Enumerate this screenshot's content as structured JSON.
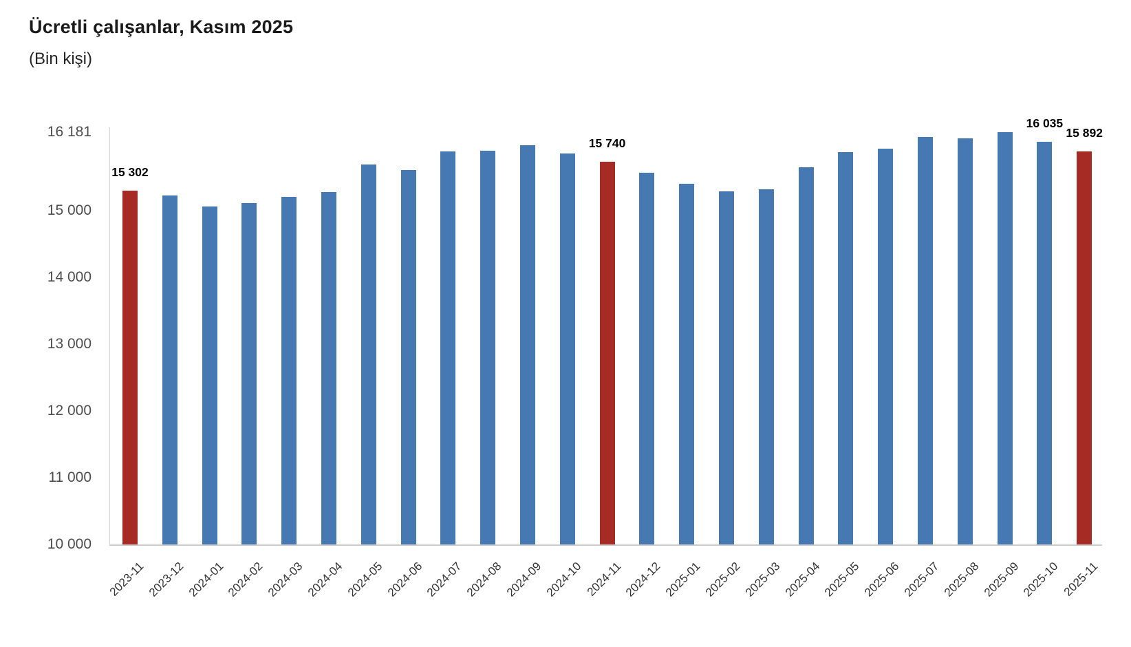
{
  "header": {
    "title": "Ücretli çalışanlar, Kasım 2025",
    "subtitle": "(Bin kişi)"
  },
  "chart_data": {
    "type": "bar",
    "title": "Ücretli çalışanlar, Kasım 2025",
    "subtitle": "(Bin kişi)",
    "unit": "Bin kişi",
    "categories": [
      "2023-11",
      "2023-12",
      "2024-01",
      "2024-02",
      "2024-03",
      "2024-04",
      "2024-05",
      "2024-06",
      "2024-07",
      "2024-08",
      "2024-09",
      "2024-10",
      "2024-11",
      "2024-12",
      "2025-01",
      "2025-02",
      "2025-03",
      "2025-04",
      "2025-05",
      "2025-06",
      "2025-07",
      "2025-08",
      "2025-09",
      "2025-10",
      "2025-11"
    ],
    "values": [
      15302,
      15235,
      15070,
      15115,
      15215,
      15280,
      15700,
      15610,
      15895,
      15905,
      15985,
      15860,
      15740,
      15575,
      15405,
      15295,
      15320,
      15655,
      15885,
      15930,
      16110,
      16085,
      16181,
      16035,
      15892
    ],
    "highlight_indices": [
      0,
      12,
      24
    ],
    "data_labels": [
      {
        "index": 0,
        "label": "15 302"
      },
      {
        "index": 12,
        "label": "15 740"
      },
      {
        "index": 23,
        "label": "16 035"
      },
      {
        "index": 24,
        "label": "15 892"
      }
    ],
    "y_ticks": [
      {
        "label": "16 181",
        "value": 16181
      },
      {
        "label": "15 000",
        "value": 15000
      },
      {
        "label": "14 000",
        "value": 14000
      },
      {
        "label": "13 000",
        "value": 13000
      },
      {
        "label": "12 000",
        "value": 12000
      },
      {
        "label": "11 000",
        "value": 11000
      },
      {
        "label": "10 000",
        "value": 10000
      }
    ],
    "ylim": [
      10000,
      16181
    ],
    "xlabel": "",
    "ylabel": "",
    "grid": false,
    "legend": false,
    "colors": {
      "bar": "#4679B1",
      "highlight": "#A62B24",
      "axis": "#CCCCCC",
      "y_tick_text": "#4D4D4D",
      "x_tick_text": "#333333",
      "data_label_text": "#000000",
      "title_text": "#1A1A1A"
    }
  }
}
